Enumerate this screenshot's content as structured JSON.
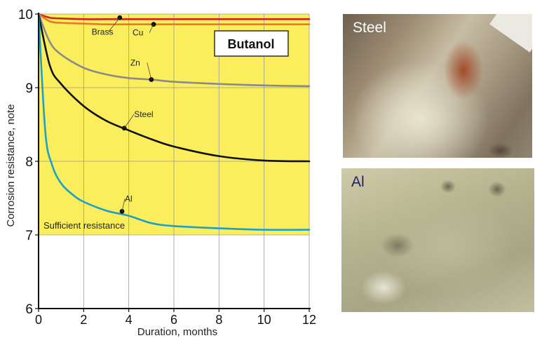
{
  "chart_data": {
    "type": "line",
    "title": "Butanol",
    "xlabel": "Duration, months",
    "ylabel": "Corrosion resistance, note",
    "xlim": [
      0,
      12
    ],
    "ylim": [
      6,
      10
    ],
    "xticks": [
      0,
      2,
      4,
      6,
      8,
      10,
      12
    ],
    "yticks": [
      6,
      7,
      8,
      9,
      10
    ],
    "grid": true,
    "shaded_region": {
      "label": "Sufficient resistance",
      "y_from": 7,
      "y_to": 10,
      "color": "#fbee5c"
    },
    "series": [
      {
        "name": "Brass",
        "color": "#d0242a",
        "x": [
          0,
          0.5,
          1,
          2,
          3,
          4,
          6,
          8,
          10,
          12
        ],
        "y": [
          10,
          9.95,
          9.94,
          9.93,
          9.93,
          9.93,
          9.93,
          9.93,
          9.93,
          9.93
        ],
        "label_point": [
          3.6,
          9.95
        ]
      },
      {
        "name": "Cu",
        "color": "#e8782a",
        "x": [
          0,
          0.5,
          1,
          2,
          3,
          4,
          6,
          8,
          10,
          12
        ],
        "y": [
          10,
          9.9,
          9.88,
          9.87,
          9.86,
          9.86,
          9.86,
          9.86,
          9.86,
          9.86
        ],
        "label_point": [
          5.1,
          9.86
        ]
      },
      {
        "name": "Zn",
        "color": "#8a8a8a",
        "x": [
          0,
          0.5,
          1,
          2,
          3,
          4,
          5,
          6,
          8,
          10,
          12
        ],
        "y": [
          10,
          9.62,
          9.45,
          9.27,
          9.18,
          9.13,
          9.11,
          9.08,
          9.05,
          9.03,
          9.02
        ],
        "label_point": [
          5.0,
          9.11
        ]
      },
      {
        "name": "Steel",
        "color": "#111111",
        "x": [
          0,
          0.5,
          1,
          2,
          3,
          4,
          5,
          6,
          8,
          10,
          12
        ],
        "y": [
          10,
          9.3,
          9.05,
          8.75,
          8.55,
          8.42,
          8.3,
          8.2,
          8.07,
          8.01,
          8.0
        ],
        "label_point": [
          3.8,
          8.45
        ]
      },
      {
        "name": "Al",
        "color": "#1e9fc8",
        "x": [
          0,
          0.3,
          0.6,
          1,
          1.5,
          2,
          3,
          4,
          5,
          6,
          8,
          10,
          12
        ],
        "y": [
          10,
          8.4,
          7.95,
          7.7,
          7.55,
          7.45,
          7.33,
          7.26,
          7.16,
          7.12,
          7.09,
          7.07,
          7.07
        ],
        "label_point": [
          3.7,
          7.32
        ]
      }
    ]
  },
  "photos": [
    {
      "label": "Steel",
      "label_color": "#ffffff"
    },
    {
      "label": "Al",
      "label_color": "#222266"
    }
  ]
}
